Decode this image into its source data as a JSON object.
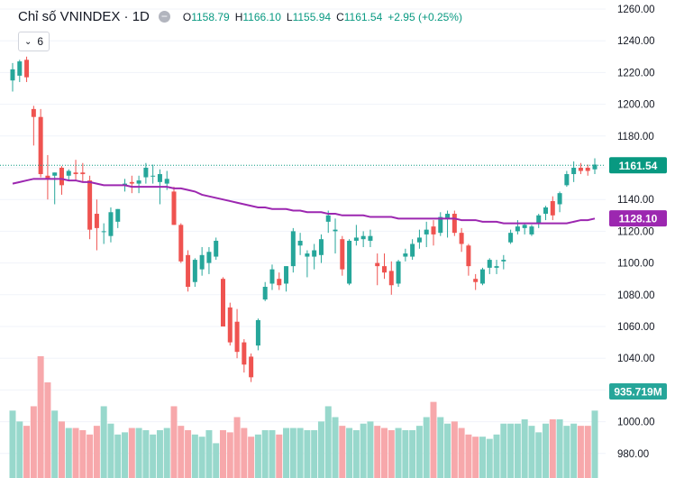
{
  "legend": {
    "title": "Chỉ số VNINDEX · 1D",
    "collapse_glyph": "−",
    "open_key": "O",
    "open": "1158.79",
    "high_key": "H",
    "high": "1166.10",
    "low_key": "L",
    "low": "1155.94",
    "close_key": "C",
    "close": "1161.54",
    "change": "+2.95 (+0.25%)"
  },
  "indicator": {
    "chevron": "⌄",
    "period": "6"
  },
  "colors": {
    "up": "#26a69a",
    "down": "#ef5350",
    "ma": "#9c27b0",
    "vol_up": "#98d8cc",
    "vol_down": "#f7a8ab",
    "last_price": "#089981",
    "ma_label": "#9c27b0"
  },
  "chart_data": {
    "type": "candlestick",
    "ylim": [
      975,
      1262
    ],
    "y_ticks": [
      "1260.00",
      "1240.00",
      "1220.00",
      "1200.00",
      "1180.00",
      "1160.00",
      "1140.00",
      "1120.00",
      "1100.00",
      "1080.00",
      "1060.00",
      "1040.00",
      "1020.00",
      "1000.00",
      "980.00"
    ],
    "last_price_label": "1161.54",
    "ma_label": "1128.10",
    "volume_label": "935.719M",
    "candles": [
      [
        1215,
        1226,
        1208,
        1222
      ],
      [
        1218,
        1228,
        1214,
        1227
      ],
      [
        1228,
        1230,
        1214,
        1217
      ],
      [
        1197,
        1199,
        1174,
        1192
      ],
      [
        1192,
        1197,
        1154,
        1156
      ],
      [
        1155,
        1168,
        1140,
        1153
      ],
      [
        1155,
        1157,
        1137,
        1157
      ],
      [
        1160,
        1161,
        1143,
        1149
      ],
      [
        1155,
        1159,
        1152,
        1158
      ],
      [
        1157,
        1165,
        1152,
        1156
      ],
      [
        1157,
        1163,
        1151,
        1156
      ],
      [
        1152,
        1155,
        1115,
        1121
      ],
      [
        1131,
        1140,
        1108,
        1122
      ],
      [
        1120,
        1125,
        1112,
        1120
      ],
      [
        1117,
        1135,
        1113,
        1132
      ],
      [
        1126,
        1134,
        1122,
        1134
      ],
      [
        1149,
        1153,
        1145,
        1150
      ],
      [
        1151,
        1155,
        1144,
        1150
      ],
      [
        1150,
        1155,
        1144,
        1152
      ],
      [
        1154,
        1163,
        1150,
        1160
      ],
      [
        1155,
        1162,
        1150,
        1155
      ],
      [
        1151,
        1159,
        1137,
        1156
      ],
      [
        1150,
        1158,
        1146,
        1153
      ],
      [
        1145,
        1148,
        1124,
        1124
      ],
      [
        1124,
        1125,
        1100,
        1101
      ],
      [
        1105,
        1108,
        1082,
        1085
      ],
      [
        1088,
        1103,
        1085,
        1102
      ],
      [
        1096,
        1110,
        1092,
        1105
      ],
      [
        1100,
        1110,
        1093,
        1107
      ],
      [
        1104,
        1116,
        1102,
        1114
      ],
      [
        1090,
        1091,
        1062,
        1060
      ],
      [
        1072,
        1075,
        1048,
        1050
      ],
      [
        1063,
        1071,
        1040,
        1044
      ],
      [
        1050,
        1052,
        1031,
        1036
      ],
      [
        1041,
        1043,
        1025,
        1028
      ],
      [
        1048,
        1065,
        1045,
        1064
      ],
      [
        1077,
        1088,
        1076,
        1085
      ],
      [
        1087,
        1099,
        1083,
        1096
      ],
      [
        1090,
        1094,
        1083,
        1086
      ],
      [
        1087,
        1098,
        1082,
        1098
      ],
      [
        1098,
        1122,
        1094,
        1120
      ],
      [
        1111,
        1119,
        1105,
        1114
      ],
      [
        1104,
        1108,
        1091,
        1106
      ],
      [
        1104,
        1112,
        1096,
        1108
      ],
      [
        1105,
        1118,
        1100,
        1115
      ],
      [
        1126,
        1133,
        1119,
        1130
      ],
      [
        1120,
        1128,
        1106,
        1121
      ],
      [
        1115,
        1117,
        1092,
        1096
      ],
      [
        1087,
        1115,
        1086,
        1114
      ],
      [
        1114,
        1124,
        1111,
        1116
      ],
      [
        1115,
        1120,
        1110,
        1117
      ],
      [
        1114,
        1121,
        1110,
        1117
      ],
      [
        1100,
        1106,
        1086,
        1098
      ],
      [
        1098,
        1106,
        1090,
        1094
      ],
      [
        1095,
        1101,
        1080,
        1086
      ],
      [
        1087,
        1102,
        1085,
        1101
      ],
      [
        1104,
        1109,
        1101,
        1106
      ],
      [
        1104,
        1115,
        1102,
        1112
      ],
      [
        1113,
        1121,
        1109,
        1116
      ],
      [
        1118,
        1126,
        1110,
        1121
      ],
      [
        1123,
        1127,
        1111,
        1118
      ],
      [
        1119,
        1132,
        1117,
        1129
      ],
      [
        1128,
        1133,
        1116,
        1131
      ],
      [
        1131,
        1133,
        1117,
        1119
      ],
      [
        1119,
        1122,
        1107,
        1112
      ],
      [
        1111,
        1112,
        1092,
        1098
      ],
      [
        1090,
        1093,
        1083,
        1088
      ],
      [
        1087,
        1097,
        1086,
        1096
      ],
      [
        1097,
        1103,
        1093,
        1102
      ],
      [
        1097,
        1102,
        1093,
        1098
      ],
      [
        1101,
        1105,
        1096,
        1102
      ],
      [
        1113,
        1121,
        1112,
        1119
      ],
      [
        1120,
        1127,
        1118,
        1123
      ],
      [
        1122,
        1125,
        1118,
        1124
      ],
      [
        1118,
        1124,
        1117,
        1123
      ],
      [
        1125,
        1131,
        1122,
        1130
      ],
      [
        1131,
        1136,
        1127,
        1135
      ],
      [
        1139,
        1142,
        1127,
        1130
      ],
      [
        1137,
        1145,
        1132,
        1144
      ],
      [
        1149,
        1158,
        1148,
        1156
      ],
      [
        1156,
        1164,
        1151,
        1160
      ],
      [
        1160,
        1163,
        1156,
        1158
      ],
      [
        1160,
        1162,
        1155,
        1158
      ],
      [
        1159,
        1166,
        1156,
        1162
      ]
    ],
    "ma": [
      1150,
      1151,
      1152,
      1153,
      1153,
      1153,
      1153,
      1153,
      1152,
      1152,
      1151,
      1151,
      1150,
      1149,
      1149,
      1149,
      1149,
      1148,
      1148,
      1148,
      1148,
      1148,
      1148,
      1147,
      1147,
      1146,
      1145,
      1143,
      1142,
      1141,
      1140,
      1139,
      1138,
      1137,
      1136,
      1135,
      1135,
      1134,
      1134,
      1134,
      1133,
      1133,
      1132,
      1132,
      1132,
      1131,
      1131,
      1130,
      1130,
      1130,
      1130,
      1129,
      1129,
      1129,
      1129,
      1128,
      1128,
      1128,
      1128,
      1128,
      1128,
      1128,
      1128,
      1128,
      1127,
      1127,
      1127,
      1126,
      1126,
      1126,
      1125,
      1125,
      1125,
      1125,
      1125,
      1125,
      1125,
      1125,
      1125,
      1125,
      1126,
      1127,
      1127,
      1128
    ],
    "volume": [
      310,
      260,
      240,
      330,
      560,
      440,
      310,
      260,
      230,
      230,
      220,
      200,
      240,
      330,
      250,
      200,
      210,
      230,
      230,
      220,
      200,
      220,
      230,
      330,
      240,
      220,
      200,
      190,
      220,
      160,
      220,
      210,
      280,
      230,
      190,
      200,
      220,
      220,
      200,
      230,
      230,
      230,
      220,
      220,
      260,
      330,
      280,
      240,
      230,
      220,
      250,
      260,
      240,
      230,
      220,
      230,
      220,
      220,
      240,
      280,
      350,
      280,
      250,
      260,
      230,
      200,
      190,
      190,
      180,
      200,
      250,
      250,
      250,
      270,
      240,
      210,
      250,
      270,
      270,
      240,
      250,
      240,
      240,
      310
    ]
  }
}
